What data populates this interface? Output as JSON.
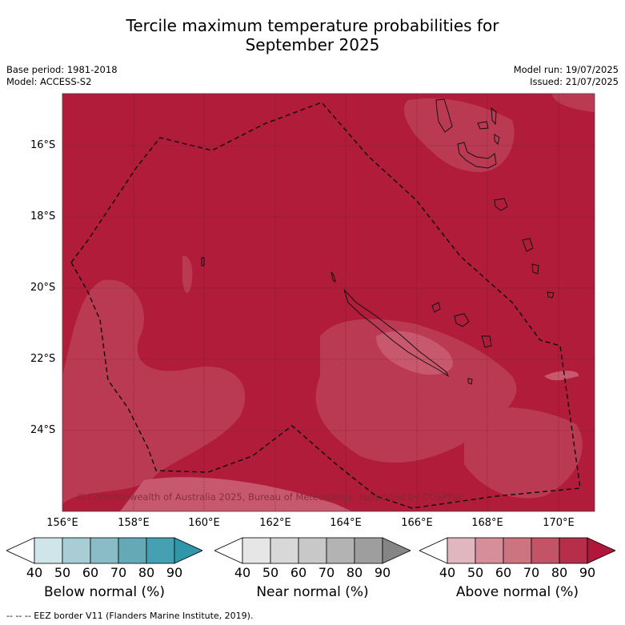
{
  "title_line1": "Tercile maximum temperature probabilities for",
  "title_line2": "September 2025",
  "meta_left": {
    "base_period": "Base period: 1981-2018",
    "model": "Model: ACCESS-S2"
  },
  "meta_right": {
    "model_run": "Model run: 19/07/2025",
    "issued": "Issued: 21/07/2025"
  },
  "copyright": "© Commonwealth of Australia 2025, Bureau of Meteorology, supported by COSPPac",
  "latitudes": [
    "16°S",
    "18°S",
    "20°S",
    "22°S",
    "24°S"
  ],
  "longitudes": [
    "156°E",
    "158°E",
    "160°E",
    "162°E",
    "164°E",
    "166°E",
    "168°E",
    "170°E"
  ],
  "colorbars": [
    {
      "title": "Below normal (%)",
      "ticks": [
        "40",
        "50",
        "60",
        "70",
        "80",
        "90"
      ],
      "colors": [
        "#ffffff",
        "#cfe5ea",
        "#a9cdd4",
        "#88bcc6",
        "#65a8b6",
        "#45a0b1",
        "#2f97a9"
      ]
    },
    {
      "title": "Near normal (%)",
      "ticks": [
        "40",
        "50",
        "60",
        "70",
        "80",
        "90"
      ],
      "colors": [
        "#ffffff",
        "#e6e6e6",
        "#d8d8d8",
        "#c8c8c8",
        "#b3b3b3",
        "#9e9e9e",
        "#858585"
      ]
    },
    {
      "title": "Above normal (%)",
      "ticks": [
        "40",
        "50",
        "60",
        "70",
        "80",
        "90"
      ],
      "colors": [
        "#ffffff",
        "#e0b7bf",
        "#d68f9a",
        "#cc7580",
        "#c35367",
        "#b62e4a",
        "#b0173a"
      ]
    }
  ],
  "footnote": "--  --  -- EEZ border V11 (Flanders Marine Institute, 2019).",
  "map_colors": {
    "base": "#b01c3a",
    "light1": "#bb3a53",
    "light2": "#c8586d",
    "light3": "#d98a98",
    "grid": "#5a1020"
  }
}
